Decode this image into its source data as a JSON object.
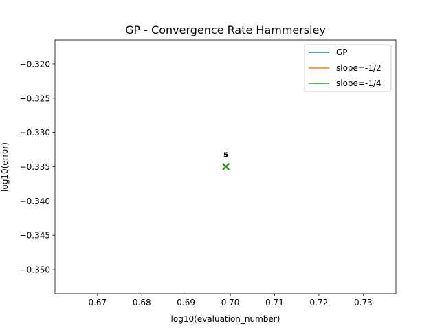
{
  "chart_data": {
    "type": "line",
    "title": "GP - Convergence Rate Hammersley",
    "xlabel": "log10(evaluation_number)",
    "ylabel": "log10(error)",
    "xlim": [
      0.6604,
      0.7374
    ],
    "ylim": [
      -0.3535,
      -0.3165
    ],
    "x_ticks": [
      0.67,
      0.68,
      0.69,
      0.7,
      0.71,
      0.72,
      0.73
    ],
    "y_ticks": [
      -0.32,
      -0.325,
      -0.33,
      -0.335,
      -0.34,
      -0.345,
      -0.35
    ],
    "x_tick_labels": [
      "0.67",
      "0.68",
      "0.69",
      "0.70",
      "0.71",
      "0.72",
      "0.73"
    ],
    "y_tick_labels": [
      "−0.320",
      "−0.325",
      "−0.330",
      "−0.335",
      "−0.340",
      "−0.345",
      "−0.350"
    ],
    "grid": false,
    "legend_position": "top-right",
    "series": [
      {
        "name": "GP",
        "color": "#1f77b4",
        "x": [
          0.699
        ],
        "y": [
          -0.335
        ],
        "marker": "x"
      },
      {
        "name": "slope=-1/2",
        "color": "#ff7f0e",
        "x": [
          0.699
        ],
        "y": [
          -0.335
        ],
        "marker": "x"
      },
      {
        "name": "slope=-1/4",
        "color": "#2ca02c",
        "x": [
          0.699
        ],
        "y": [
          -0.335
        ],
        "marker": "x"
      }
    ],
    "annotations": [
      {
        "text": "5",
        "x": 0.699,
        "y": -0.3332
      },
      {
        "text": "5",
        "x": 0.699,
        "y": -0.3332
      },
      {
        "text": "5",
        "x": 0.699,
        "y": -0.3332
      }
    ]
  }
}
